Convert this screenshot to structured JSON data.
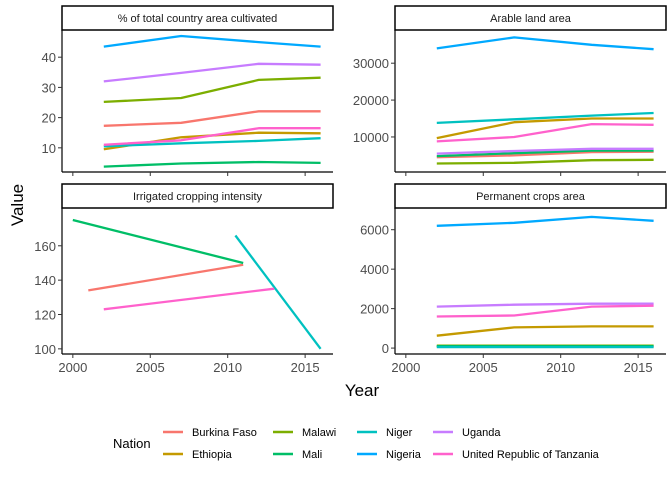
{
  "chart_data": {
    "type": "line",
    "facet_layout": "2x2",
    "xlabel": "Year",
    "ylabel": "Value",
    "x_ticks": [
      2000,
      2005,
      2010,
      2015
    ],
    "xlim": [
      1999.3,
      2016.8
    ],
    "grid": false,
    "legend": {
      "title": "Nation",
      "placement": "bottom",
      "entries": [
        {
          "name": "Burkina Faso",
          "color": "#F8766D"
        },
        {
          "name": "Ethiopia",
          "color": "#C49A00"
        },
        {
          "name": "Malawi",
          "color": "#7CAE00"
        },
        {
          "name": "Mali",
          "color": "#00BE67"
        },
        {
          "name": "Niger",
          "color": "#00C1C0"
        },
        {
          "name": "Nigeria",
          "color": "#00A9FF"
        },
        {
          "name": "Uganda",
          "color": "#C77CFF"
        },
        {
          "name": "United Republic of Tanzania",
          "color": "#FF61CC"
        }
      ]
    },
    "facets": [
      {
        "title": "% of total country area cultivated",
        "ylim": [
          2,
          49
        ],
        "y_ticks": [
          10,
          20,
          30,
          40
        ],
        "series": [
          {
            "name": "Burkina Faso",
            "x": [
              2002,
              2007,
              2012,
              2016
            ],
            "y": [
              17.3,
              18.3,
              22.1,
              22.1
            ]
          },
          {
            "name": "Ethiopia",
            "x": [
              2002,
              2007,
              2012,
              2016
            ],
            "y": [
              9.5,
              13.5,
              15.0,
              14.8
            ]
          },
          {
            "name": "Malawi",
            "x": [
              2002,
              2007,
              2012,
              2016
            ],
            "y": [
              25.2,
              26.5,
              32.5,
              33.2
            ]
          },
          {
            "name": "Mali",
            "x": [
              2002,
              2007,
              2012,
              2016
            ],
            "y": [
              3.8,
              4.8,
              5.3,
              5.0
            ]
          },
          {
            "name": "Niger",
            "x": [
              2002,
              2007,
              2012,
              2016
            ],
            "y": [
              10.5,
              11.5,
              12.3,
              13.2
            ]
          },
          {
            "name": "Nigeria",
            "x": [
              2002,
              2007,
              2012,
              2016
            ],
            "y": [
              43.5,
              47.0,
              45.0,
              43.5
            ]
          },
          {
            "name": "Uganda",
            "x": [
              2002,
              2007,
              2012,
              2016
            ],
            "y": [
              32.0,
              34.8,
              37.8,
              37.5
            ]
          },
          {
            "name": "United Republic of Tanzania",
            "x": [
              2002,
              2007,
              2012,
              2016
            ],
            "y": [
              11.0,
              12.5,
              16.5,
              16.5
            ]
          }
        ]
      },
      {
        "title": "Arable land area",
        "ylim": [
          500,
          39000
        ],
        "y_ticks": [
          10000,
          20000,
          30000
        ],
        "series": [
          {
            "name": "Burkina Faso",
            "x": [
              2002,
              2007,
              2012,
              2016
            ],
            "y": [
              4500,
              5000,
              5900,
              6000
            ]
          },
          {
            "name": "Ethiopia",
            "x": [
              2002,
              2007,
              2012,
              2016
            ],
            "y": [
              9700,
              14000,
              15000,
              15000
            ]
          },
          {
            "name": "Malawi",
            "x": [
              2002,
              2007,
              2012,
              2016
            ],
            "y": [
              2800,
              3000,
              3700,
              3800
            ]
          },
          {
            "name": "Mali",
            "x": [
              2002,
              2007,
              2012,
              2016
            ],
            "y": [
              4800,
              5600,
              6300,
              6300
            ]
          },
          {
            "name": "Niger",
            "x": [
              2002,
              2007,
              2012,
              2016
            ],
            "y": [
              13800,
              14800,
              15800,
              16500
            ]
          },
          {
            "name": "Nigeria",
            "x": [
              2002,
              2007,
              2012,
              2016
            ],
            "y": [
              34000,
              37000,
              35000,
              33800
            ]
          },
          {
            "name": "Uganda",
            "x": [
              2002,
              2007,
              2012,
              2016
            ],
            "y": [
              5500,
              6200,
              6800,
              6800
            ]
          },
          {
            "name": "United Republic of Tanzania",
            "x": [
              2002,
              2007,
              2012,
              2016
            ],
            "y": [
              8800,
              10000,
              13500,
              13300
            ]
          }
        ]
      },
      {
        "title": "Irrigated cropping intensity",
        "ylim": [
          97,
          182
        ],
        "y_ticks": [
          100,
          120,
          140,
          160
        ],
        "series": [
          {
            "name": "Burkina Faso",
            "x": [
              2001,
              2011
            ],
            "y": [
              134,
              149
            ]
          },
          {
            "name": "Mali",
            "x": [
              2000,
              2011
            ],
            "y": [
              175,
              150
            ]
          },
          {
            "name": "Niger",
            "x": [
              2010.5,
              2016
            ],
            "y": [
              166,
              100
            ]
          },
          {
            "name": "United Republic of Tanzania",
            "x": [
              2002,
              2013
            ],
            "y": [
              123,
              135
            ]
          }
        ]
      },
      {
        "title": "Permanent crops area",
        "ylim": [
          -300,
          7100
        ],
        "y_ticks": [
          0,
          2000,
          4000,
          6000
        ],
        "series": [
          {
            "name": "Burkina Faso",
            "x": [
              2002,
              2007,
              2012,
              2016
            ],
            "y": [
              80,
              80,
              80,
              80
            ]
          },
          {
            "name": "Ethiopia",
            "x": [
              2002,
              2007,
              2012,
              2016
            ],
            "y": [
              630,
              1050,
              1100,
              1100
            ]
          },
          {
            "name": "Malawi",
            "x": [
              2002,
              2007,
              2012,
              2016
            ],
            "y": [
              120,
              120,
              120,
              120
            ]
          },
          {
            "name": "Mali",
            "x": [
              2002,
              2007,
              2012,
              2016
            ],
            "y": [
              100,
              100,
              100,
              100
            ]
          },
          {
            "name": "Niger",
            "x": [
              2002,
              2007,
              2012,
              2016
            ],
            "y": [
              50,
              50,
              50,
              50
            ]
          },
          {
            "name": "Nigeria",
            "x": [
              2002,
              2007,
              2012,
              2016
            ],
            "y": [
              6200,
              6350,
              6650,
              6450
            ]
          },
          {
            "name": "Uganda",
            "x": [
              2002,
              2007,
              2012,
              2016
            ],
            "y": [
              2100,
              2200,
              2250,
              2250
            ]
          },
          {
            "name": "United Republic of Tanzania",
            "x": [
              2002,
              2007,
              2012,
              2016
            ],
            "y": [
              1600,
              1650,
              2100,
              2150
            ]
          }
        ]
      }
    ]
  }
}
